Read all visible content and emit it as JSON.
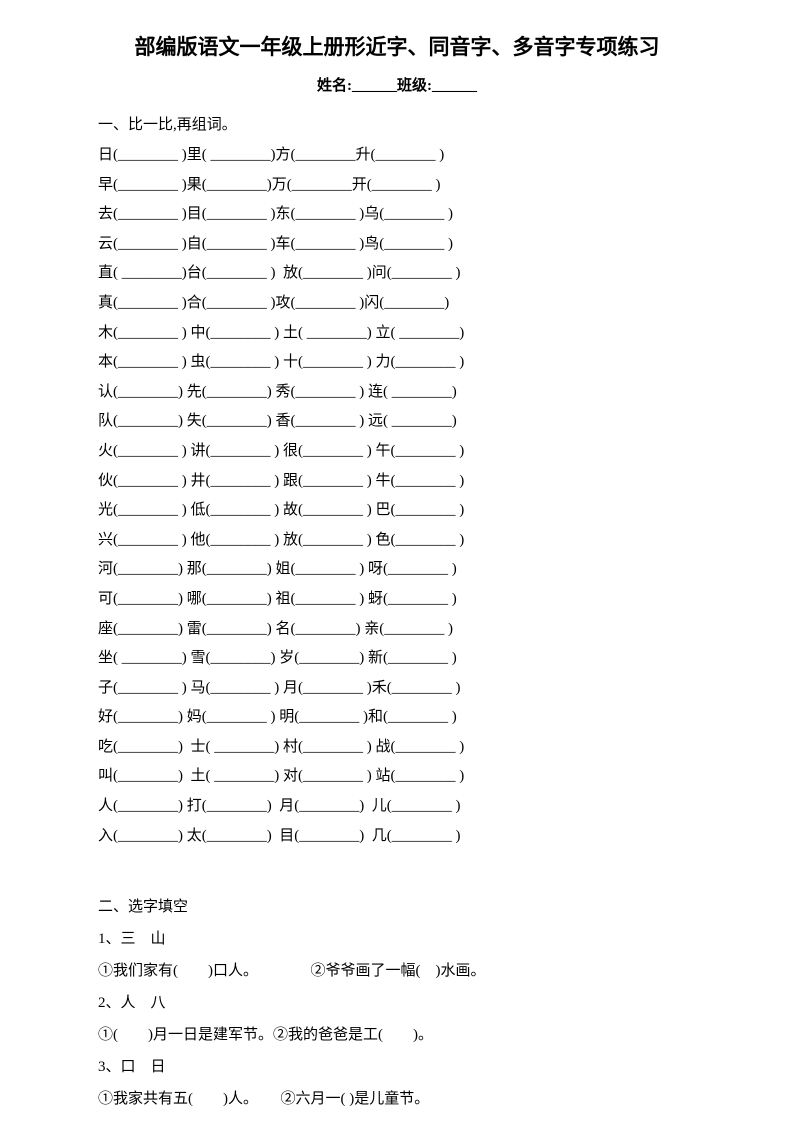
{
  "page": {
    "title": "部编版语文一年级上册形近字、同音字、多音字专项练习",
    "name_class_line": "姓名:______班级:______"
  },
  "section1": {
    "heading": "一、比一比,再组词。",
    "rows": [
      "日(________ )里( ________)方(________升(________ )",
      "早(________ )果(________)万(________开(________ )",
      "去(________ )目(________ )东(________ )乌(________ )",
      "云(________ )自(________ )车(________ )鸟(________ )",
      "直( ________)台(________ )  放(________ )问(________ )",
      "真(________ )合(________ )攻(________ )闪(________)",
      "木(________ ) 中(________ ) 土( ________) 立( ________)",
      "本(________ ) 虫(________ ) 十(________ ) 力(________ )",
      "认(________) 先(________) 秀(________ ) 连( ________)",
      "队(________) 失(________) 香(________ ) 远( ________)",
      "火(________ ) 讲(________ ) 很(________ ) 午(________ )",
      "伙(________ ) 井(________ ) 跟(________ ) 牛(________ )",
      "光(________ ) 低(________ ) 故(________ ) 巴(________ )",
      "兴(________ ) 他(________ ) 放(________ ) 色(________ )",
      "河(________) 那(________) 姐(________ ) 呀(________ )",
      "可(________) 哪(________) 祖(________ ) 蚜(________ )",
      "座(________) 雷(________) 名(________) 亲(________ )",
      "坐( ________) 雪(________) 岁(________) 新(________ )",
      "子(________ ) 马(________ ) 月(________ )禾(________ )",
      "好(________) 妈(________ ) 明(________ )和(________ )",
      "吃(________)  士( ________) 村(________ ) 战(________ )",
      "叫(________)  土( ________) 对(________ ) 站(________ )",
      "人(________) 打(________)  月(________)  儿(________ )",
      "入(________) 太(________)  目(________)  几(________ )"
    ]
  },
  "section2": {
    "heading": "二、选字填空",
    "items": [
      {
        "choices": "1、三　山",
        "sentence": "①我们家有(　　)口人。　　　　②爷爷画了一幅(　)水画。"
      },
      {
        "choices": "2、人　八",
        "sentence": "①(　　)月一日是建军节。②我的爸爸是工(　　)。"
      },
      {
        "choices": "3、口　日",
        "sentence": "①我家共有五(　　)人。　　②六月一( )是儿童节。"
      }
    ]
  }
}
